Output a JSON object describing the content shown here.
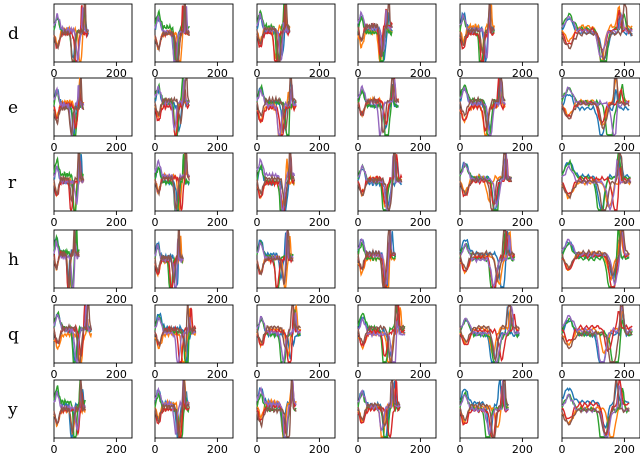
{
  "chart_data": {
    "type": "line",
    "layout": "small multiples grid",
    "rows": [
      "d",
      "e",
      "r",
      "h",
      "q",
      "y"
    ],
    "columns": 6,
    "xlim": [
      0,
      250
    ],
    "xticks": [
      0,
      200
    ],
    "xtick_labels": [
      "0",
      "200"
    ],
    "yticks": [],
    "grid": false,
    "legend": "none",
    "series_colors": [
      "#1f77b4",
      "#ff7f0e",
      "#2ca02c",
      "#d62728",
      "#9467bd",
      "#8c564b"
    ],
    "series_x_end": [
      [
        110,
        110,
        105,
        110,
        110,
        225
      ],
      [
        95,
        110,
        125,
        130,
        145,
        215
      ],
      [
        95,
        110,
        120,
        140,
        165,
        220
      ],
      [
        80,
        90,
        115,
        120,
        175,
        215
      ],
      [
        120,
        130,
        140,
        150,
        190,
        225
      ],
      [
        100,
        110,
        125,
        135,
        155,
        215
      ]
    ]
  }
}
